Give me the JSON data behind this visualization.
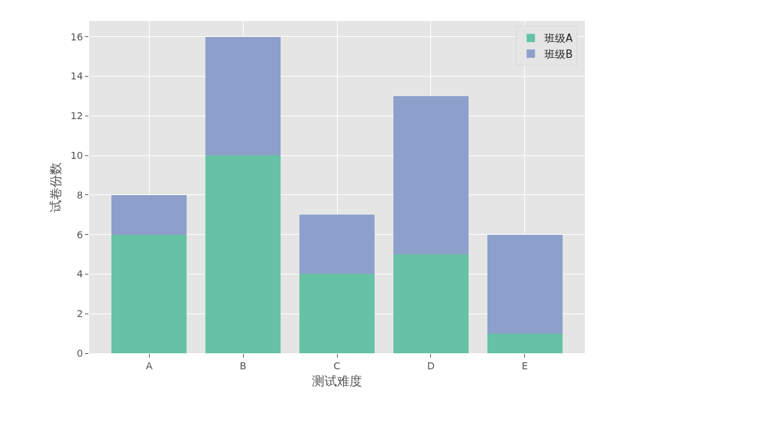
{
  "chart_data": {
    "type": "bar",
    "stacked": true,
    "xlabel": "测试难度",
    "ylabel": "试卷份数",
    "categories": [
      "A",
      "B",
      "C",
      "D",
      "E"
    ],
    "series": [
      {
        "name": "班级A",
        "color": "#66c2a5",
        "values": [
          6,
          10,
          4,
          5,
          1
        ]
      },
      {
        "name": "班级B",
        "color": "#8da0cb",
        "values": [
          2,
          6,
          3,
          8,
          5
        ]
      }
    ],
    "ylim": [
      0,
      16.8
    ],
    "yticks": [
      0,
      2,
      4,
      6,
      8,
      10,
      12,
      14,
      16
    ],
    "grid": true,
    "legend": "top right"
  }
}
